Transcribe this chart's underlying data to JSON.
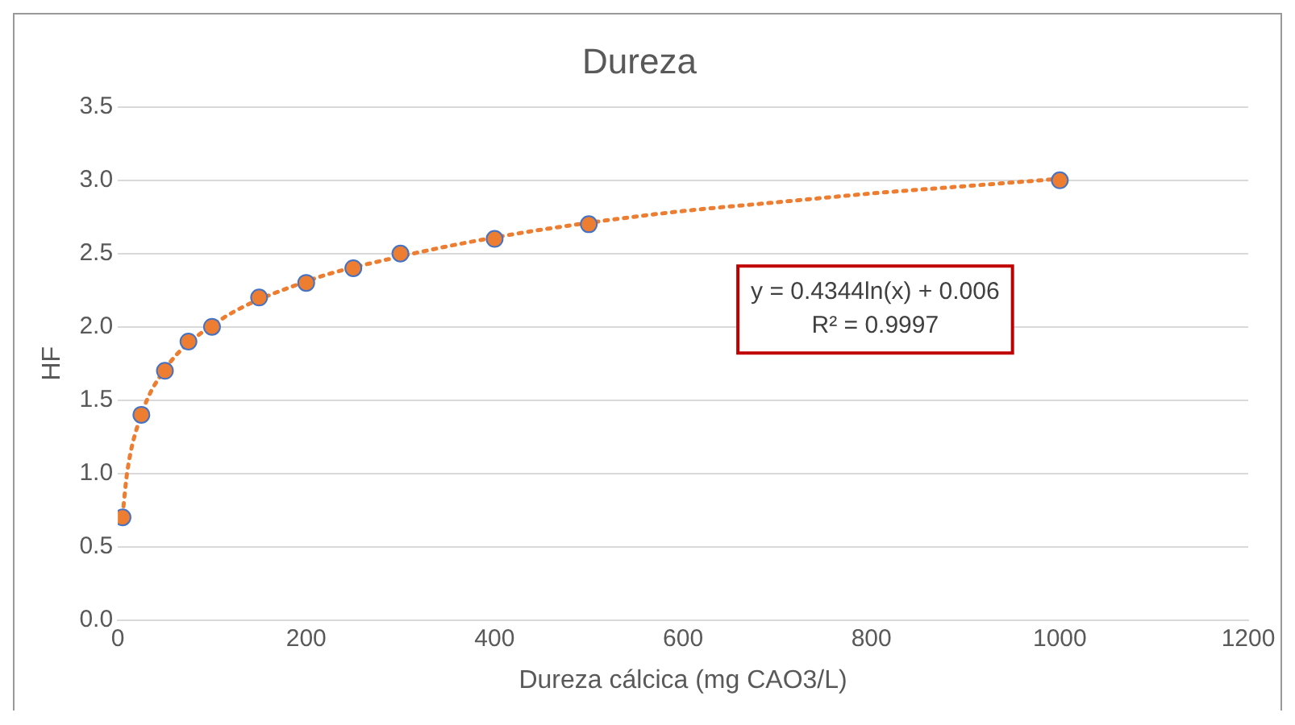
{
  "chart_data": {
    "type": "scatter",
    "title": "Dureza",
    "xlabel": "Dureza cálcica (mg CAO3/L)",
    "ylabel": "HF",
    "xlim": [
      0,
      1200
    ],
    "xticks": [
      0,
      200,
      400,
      600,
      800,
      1000,
      1200
    ],
    "ylim": [
      0,
      3.5
    ],
    "yticks": [
      {
        "value": 0,
        "label": "0.0"
      },
      {
        "value": 0.5,
        "label": "0.5"
      },
      {
        "value": 1,
        "label": "1.0"
      },
      {
        "value": 1.5,
        "label": "1.5"
      },
      {
        "value": 2,
        "label": "2.0"
      },
      {
        "value": 2.5,
        "label": "2.5"
      },
      {
        "value": 3,
        "label": "3.0"
      },
      {
        "value": 3.5,
        "label": "3.5"
      }
    ],
    "grid": "y",
    "legend": false,
    "marker": "circle",
    "series": [
      {
        "type": "line",
        "color": "#ed7d31",
        "line_style": "dotted",
        "marker": "none",
        "x": [
          5,
          10,
          25,
          50,
          100,
          200,
          300,
          400,
          500,
          600,
          700,
          800,
          900,
          1000
        ],
        "values": [
          0.71,
          1.01,
          1.4,
          1.71,
          2.01,
          2.31,
          2.48,
          2.61,
          2.71,
          2.79,
          2.85,
          2.91,
          2.96,
          3.01
        ]
      },
      {
        "type": "scatter",
        "color": "#ed7d31",
        "x": [
          5,
          25,
          50,
          75,
          100,
          150,
          200,
          250,
          300,
          400,
          500,
          1000
        ],
        "values": [
          0.7,
          1.4,
          1.7,
          1.9,
          2.0,
          2.2,
          2.3,
          2.4,
          2.5,
          2.6,
          2.7,
          3.0
        ]
      }
    ],
    "annotations": [
      "y = 0.4344ln(x) + 0.006",
      "R² = 0.9997"
    ]
  }
}
